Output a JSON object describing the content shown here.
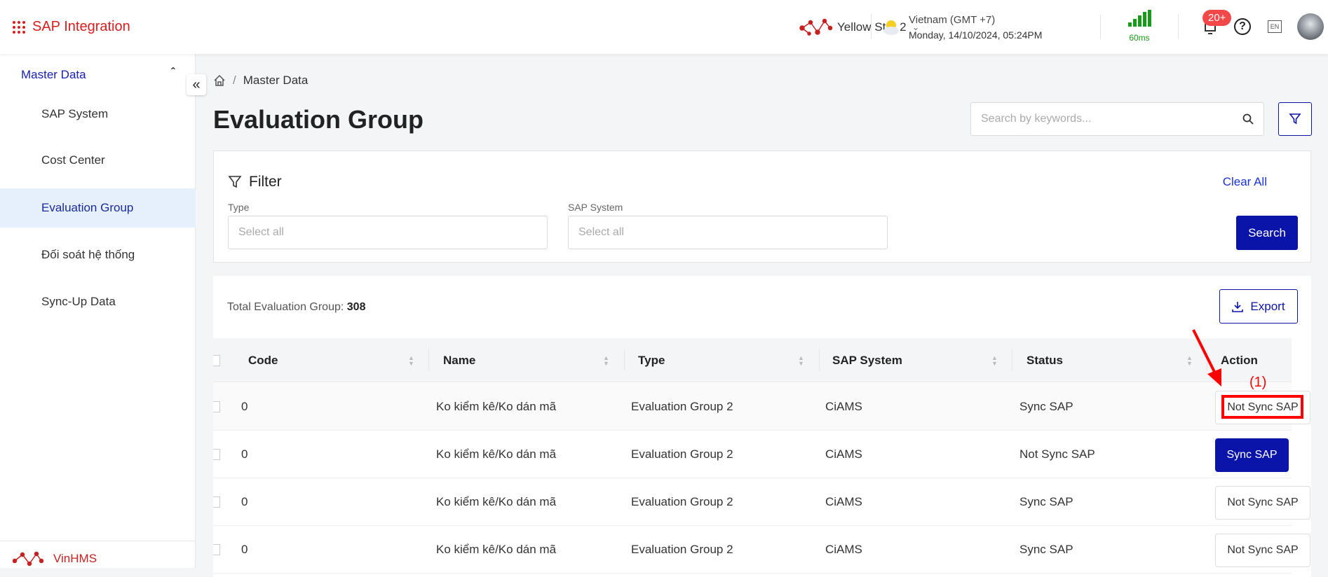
{
  "header": {
    "app_title": "SAP Integration",
    "hotel": "Yellow Star 2",
    "timezone": "Vietnam (GMT +7)",
    "datetime": "Monday, 14/10/2024, 05:24PM",
    "latency": "60ms",
    "notification_count": "20+",
    "language": "EN"
  },
  "sidebar": {
    "group": "Master Data",
    "items": [
      {
        "label": "SAP System"
      },
      {
        "label": "Cost Center"
      },
      {
        "label": "Evaluation Group",
        "active": true
      },
      {
        "label": "Đối soát hệ thống"
      },
      {
        "label": "Sync-Up Data"
      }
    ],
    "footer_brand": "VinHMS"
  },
  "breadcrumb": {
    "current": "Master Data"
  },
  "page": {
    "title": "Evaluation Group",
    "search_placeholder": "Search by keywords..."
  },
  "filter": {
    "title": "Filter",
    "clear_all": "Clear All",
    "type_label": "Type",
    "type_placeholder": "Select all",
    "sap_label": "SAP System",
    "sap_placeholder": "Select all",
    "search_button": "Search"
  },
  "table": {
    "total_label": "Total Evaluation Group:",
    "total": "308",
    "export": "Export",
    "columns": [
      "Code",
      "Name",
      "Type",
      "SAP System",
      "Status",
      "Action"
    ],
    "rows": [
      {
        "code": "0",
        "name": "Ko kiểm kê/Ko dán mã",
        "type": "Evaluation Group 2",
        "sap": "CiAMS",
        "status": "Sync SAP",
        "action": "Not Sync SAP"
      },
      {
        "code": "0",
        "name": "Ko kiểm kê/Ko dán mã",
        "type": "Evaluation Group 2",
        "sap": "CiAMS",
        "status": "Not Sync SAP",
        "action": "Sync SAP"
      },
      {
        "code": "0",
        "name": "Ko kiểm kê/Ko dán mã",
        "type": "Evaluation Group 2",
        "sap": "CiAMS",
        "status": "Sync SAP",
        "action": "Not Sync SAP"
      },
      {
        "code": "0",
        "name": "Ko kiểm kê/Ko dán mã",
        "type": "Evaluation Group 2",
        "sap": "CiAMS",
        "status": "Sync SAP",
        "action": "Not Sync SAP"
      }
    ]
  },
  "annotation": {
    "label": "(1)",
    "color": "#ff0000"
  },
  "colors": {
    "brand": "#d71f1f",
    "primary": "#0a14a8",
    "latency": "#1a9a1a"
  }
}
